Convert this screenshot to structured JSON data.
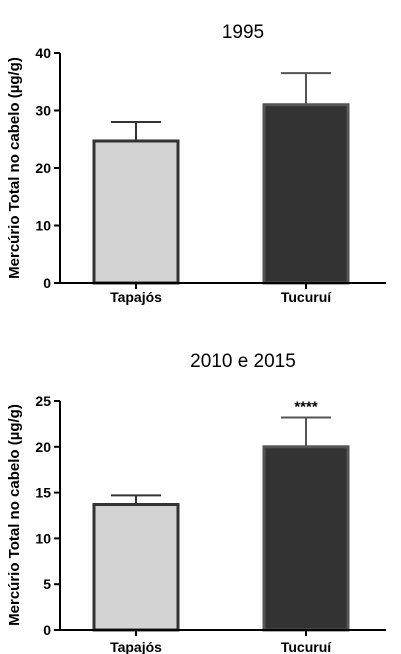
{
  "chart_data": [
    {
      "type": "bar",
      "title": "1995",
      "xlabel": "",
      "ylabel": "Mercúrio Total no cabelo (µg/g)",
      "ylim": [
        0,
        40
      ],
      "yticks": [
        0,
        10,
        20,
        30,
        40
      ],
      "categories": [
        "Tapajós",
        "Tucuruí"
      ],
      "values": [
        24.7,
        31.0
      ],
      "error_upper": [
        28.0,
        36.5
      ],
      "bar_colors": [
        "#d3d3d3",
        "#333333"
      ],
      "edge_colors": [
        "#333333",
        "#555555"
      ],
      "annotations": [
        "",
        ""
      ]
    },
    {
      "type": "bar",
      "title": "2010 e 2015",
      "xlabel": "",
      "ylabel": "Mercúrio Total no cabelo (µg/g)",
      "ylim": [
        0,
        25
      ],
      "yticks": [
        0,
        5,
        10,
        15,
        20,
        25
      ],
      "categories": [
        "Tapajós",
        "Tucuruí"
      ],
      "values": [
        13.7,
        20.0
      ],
      "error_upper": [
        14.7,
        23.2
      ],
      "bar_colors": [
        "#d3d3d3",
        "#333333"
      ],
      "edge_colors": [
        "#333333",
        "#555555"
      ],
      "annotations": [
        "",
        "****"
      ]
    }
  ]
}
